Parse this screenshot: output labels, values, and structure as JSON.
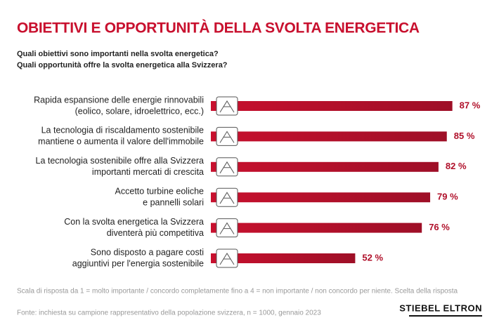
{
  "title": "OBIETTIVI E OPPORTUNITÀ DELLA SVOLTA ENERGETICA",
  "subtitle": [
    "Quali obiettivi sono importanti nella svolta energetica?",
    "Quali opportunità offre la svolta energetica alla Svizzera?"
  ],
  "chart_data": {
    "type": "bar",
    "orientation": "horizontal",
    "color": "#b5122c",
    "categories": [
      [
        "Rapida espansione delle energie rinnovabili",
        "(eolico, solare, idroelettrico, ecc.)"
      ],
      [
        "La tecnologia di riscaldamento sostenibile",
        "mantiene o aumenta il valore dell'immobile"
      ],
      [
        "La tecnologia sostenibile offre alla Svizzera",
        "importanti mercati di crescita"
      ],
      [
        "Accetto turbine eoliche",
        "e pannelli solari"
      ],
      [
        "Con la svolta energetica la Svizzera",
        "diventerà più competitiva"
      ],
      [
        "Sono disposto a pagare costi",
        "aggiuntivi per l'energia sostenibile"
      ]
    ],
    "values": [
      87,
      85,
      82,
      79,
      76,
      52
    ],
    "value_labels": [
      "87 %",
      "85 %",
      "82 %",
      "79 %",
      "76 %",
      "52 %"
    ]
  },
  "notes": [
    "Scala di risposta da 1 = molto importante / concordo completamente fino a 4 = non importante / non concordo per niente. Scelta della risposta",
    "Fonte: inchiesta su campione rappresentativo della popolazione svizzera, n = 1000, gennaio 2023"
  ],
  "logo": "STIEBEL ELTRON"
}
